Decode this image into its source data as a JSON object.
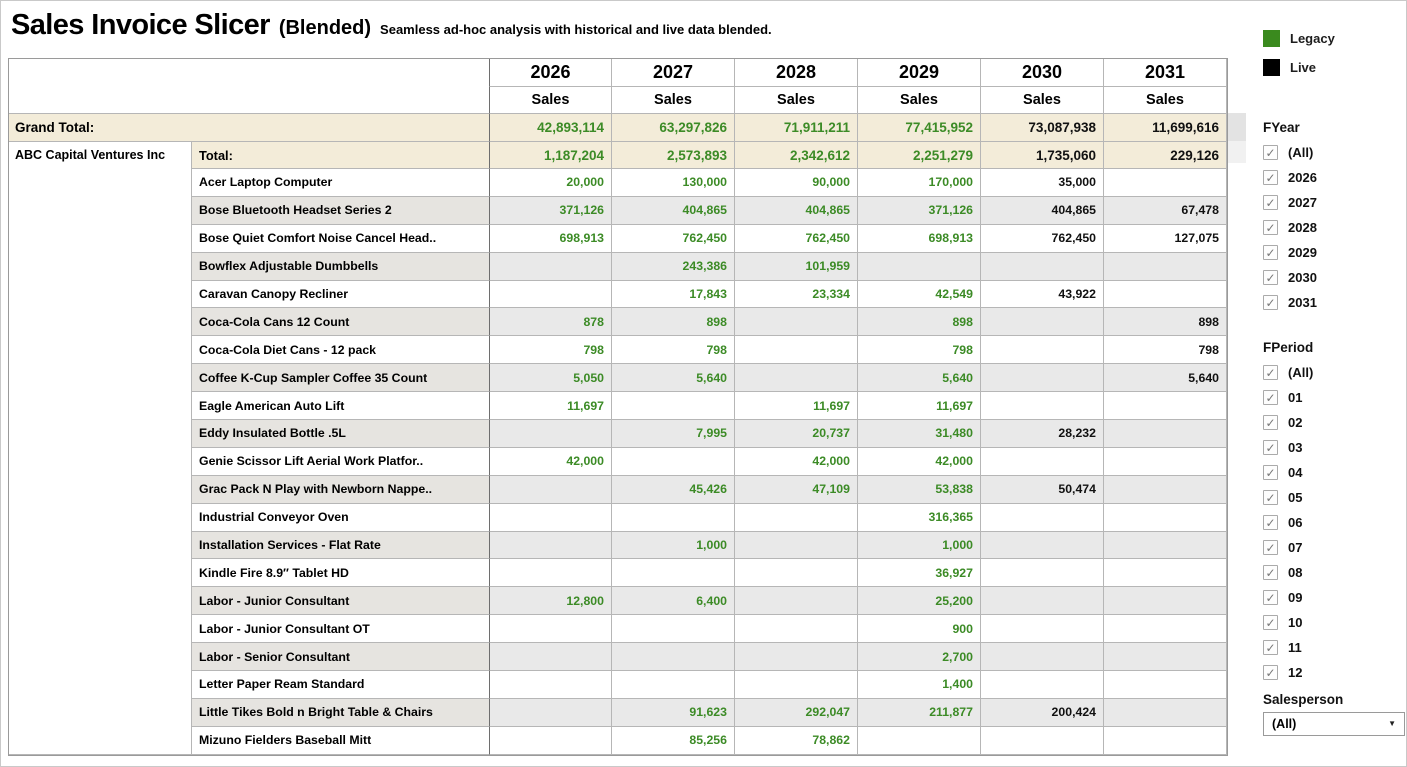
{
  "title": {
    "main": "Sales Invoice Slicer",
    "variant": "(Blended)",
    "subtitle": "Seamless ad-hoc analysis with historical and live data blended."
  },
  "selectors": {
    "row_field": "Customer",
    "col_field": "Item"
  },
  "colors": {
    "legacy_green": "#3a8a1e",
    "live_black": "#000000",
    "total_band_beige": "#f3ecd9",
    "row_band_gray": "#e9e9e9"
  },
  "table": {
    "years": [
      "2026",
      "2027",
      "2028",
      "2029",
      "2030",
      "2031"
    ],
    "measure": "Sales",
    "legacy_year_count": 4,
    "grand_total": {
      "label": "Grand Total:",
      "values": [
        "42,893,114",
        "63,297,826",
        "71,911,211",
        "77,415,952",
        "73,087,938",
        "11,699,616"
      ]
    },
    "customer": "ABC Capital Ventures Inc",
    "total": {
      "label": "Total:",
      "values": [
        "1,187,204",
        "2,573,893",
        "2,342,612",
        "2,251,279",
        "1,735,060",
        "229,126"
      ]
    },
    "items": [
      {
        "label": "Acer Laptop Computer",
        "values": [
          "20,000",
          "130,000",
          "90,000",
          "170,000",
          "35,000",
          ""
        ]
      },
      {
        "label": "Bose Bluetooth Headset Series 2",
        "values": [
          "371,126",
          "404,865",
          "404,865",
          "371,126",
          "404,865",
          "67,478"
        ]
      },
      {
        "label": "Bose Quiet Comfort Noise Cancel Head..",
        "values": [
          "698,913",
          "762,450",
          "762,450",
          "698,913",
          "762,450",
          "127,075"
        ]
      },
      {
        "label": "Bowflex Adjustable Dumbbells",
        "values": [
          "",
          "243,386",
          "101,959",
          "",
          "",
          ""
        ]
      },
      {
        "label": "Caravan Canopy Recliner",
        "values": [
          "",
          "17,843",
          "23,334",
          "42,549",
          "43,922",
          ""
        ]
      },
      {
        "label": "Coca-Cola Cans 12 Count",
        "values": [
          "878",
          "898",
          "",
          "898",
          "",
          "898"
        ]
      },
      {
        "label": "Coca-Cola Diet Cans - 12 pack",
        "values": [
          "798",
          "798",
          "",
          "798",
          "",
          "798"
        ]
      },
      {
        "label": "Coffee K-Cup Sampler Coffee 35 Count",
        "values": [
          "5,050",
          "5,640",
          "",
          "5,640",
          "",
          "5,640"
        ]
      },
      {
        "label": "Eagle American Auto Lift",
        "values": [
          "11,697",
          "",
          "11,697",
          "11,697",
          "",
          ""
        ]
      },
      {
        "label": "Eddy Insulated Bottle .5L",
        "values": [
          "",
          "7,995",
          "20,737",
          "31,480",
          "28,232",
          ""
        ]
      },
      {
        "label": "Genie Scissor Lift Aerial Work Platfor..",
        "values": [
          "42,000",
          "",
          "42,000",
          "42,000",
          "",
          ""
        ]
      },
      {
        "label": "Grac Pack N Play with Newborn Nappe..",
        "values": [
          "",
          "45,426",
          "47,109",
          "53,838",
          "50,474",
          ""
        ]
      },
      {
        "label": "Industrial Conveyor Oven",
        "values": [
          "",
          "",
          "",
          "316,365",
          "",
          ""
        ]
      },
      {
        "label": "Installation Services - Flat Rate",
        "values": [
          "",
          "1,000",
          "",
          "1,000",
          "",
          ""
        ]
      },
      {
        "label": "Kindle Fire 8.9″ Tablet HD",
        "values": [
          "",
          "",
          "",
          "36,927",
          "",
          ""
        ]
      },
      {
        "label": "Labor - Junior Consultant",
        "values": [
          "12,800",
          "6,400",
          "",
          "25,200",
          "",
          ""
        ]
      },
      {
        "label": "Labor - Junior Consultant OT",
        "values": [
          "",
          "",
          "",
          "900",
          "",
          ""
        ]
      },
      {
        "label": "Labor - Senior Consultant",
        "values": [
          "",
          "",
          "",
          "2,700",
          "",
          ""
        ]
      },
      {
        "label": "Letter Paper Ream Standard",
        "values": [
          "",
          "",
          "",
          "1,400",
          "",
          ""
        ]
      },
      {
        "label": "Little Tikes Bold n Bright Table & Chairs",
        "values": [
          "",
          "91,623",
          "292,047",
          "211,877",
          "200,424",
          ""
        ]
      },
      {
        "label": "Mizuno Fielders Baseball Mitt",
        "values": [
          "",
          "85,256",
          "78,862",
          "",
          "",
          ""
        ]
      }
    ]
  },
  "legend": {
    "items": [
      {
        "label": "Legacy",
        "color": "#3a8a1e"
      },
      {
        "label": "Live",
        "color": "#000000"
      }
    ]
  },
  "filters": [
    {
      "title": "FYear",
      "check_glyph": "✓",
      "options": [
        "(All)",
        "2026",
        "2027",
        "2028",
        "2029",
        "2030",
        "2031"
      ],
      "all_checked": true
    },
    {
      "title": "FPeriod",
      "check_glyph": "✓",
      "options": [
        "(All)",
        "01",
        "02",
        "03",
        "04",
        "05",
        "06",
        "07",
        "08",
        "09",
        "10",
        "11",
        "12"
      ],
      "all_checked": true
    }
  ],
  "salesperson": {
    "title": "Salesperson",
    "value": "(All)"
  }
}
